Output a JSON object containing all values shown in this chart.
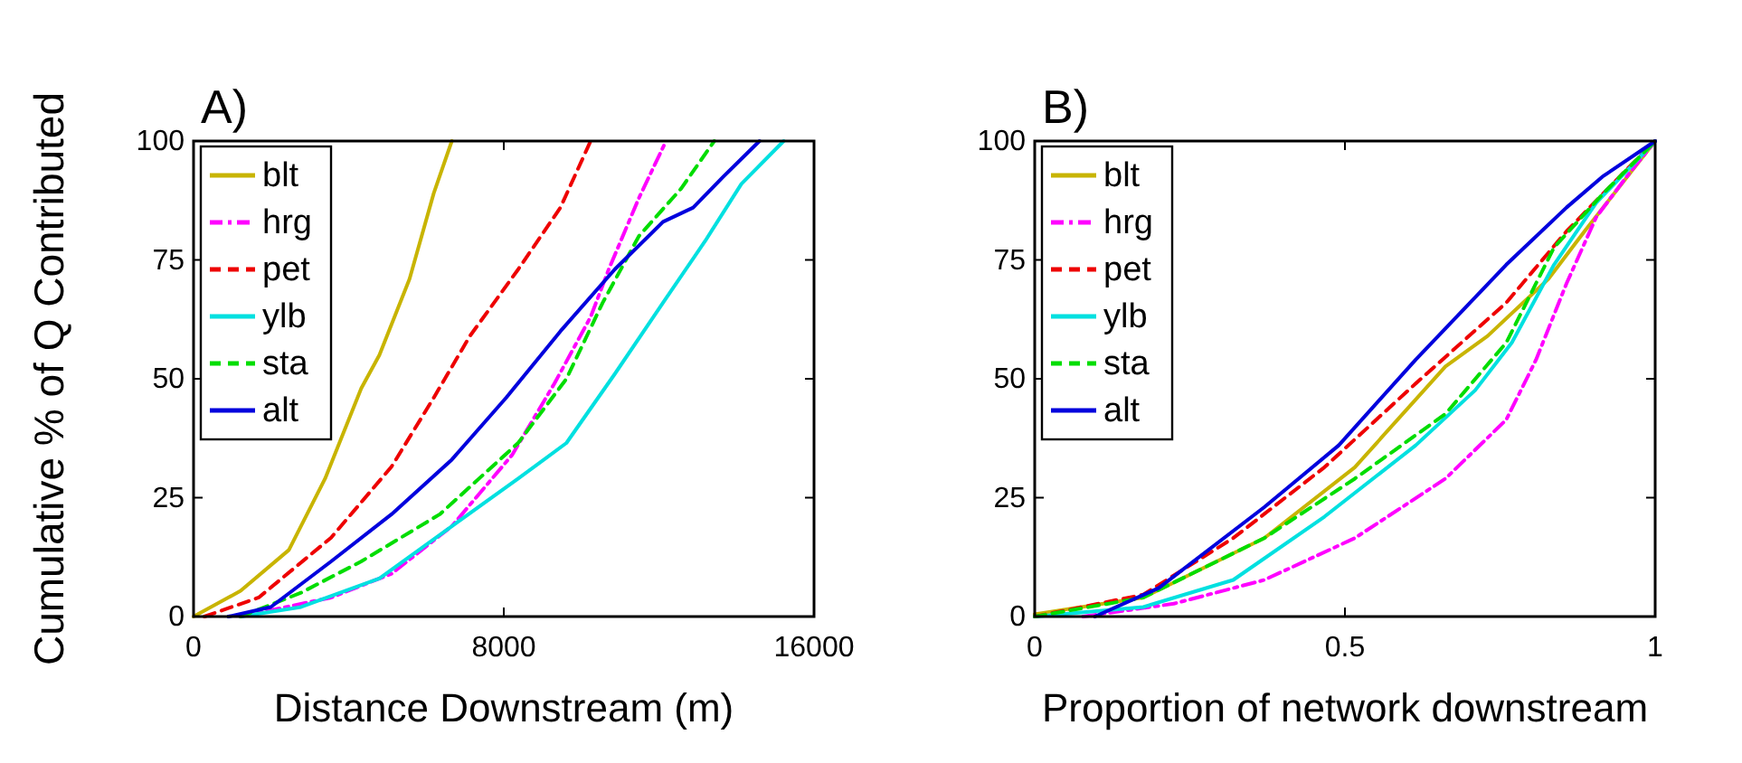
{
  "chart_data": [
    {
      "type": "line",
      "title": "A)",
      "xlabel": "Distance Downstream (m)",
      "ylabel": "Cumulative % of Q Contributed",
      "xlim": [
        0,
        16000
      ],
      "xticks": [
        0,
        8000,
        16000
      ],
      "ylim": [
        0,
        100
      ],
      "yticks": [
        0,
        25,
        50,
        75,
        100
      ],
      "grid": false,
      "legend": "top left",
      "series": [
        {
          "name": "blt",
          "color": "#c8b400",
          "line_style": "solid",
          "x": [
            0,
            1214,
            2458,
            3392,
            4325,
            4792,
            5570,
            6193,
            6660
          ],
          "values": [
            0,
            5.4,
            14,
            29,
            48,
            55,
            71,
            89,
            100
          ]
        },
        {
          "name": "hrg",
          "color": "#ff00ff",
          "line_style": "dashdot",
          "x": [
            1214,
            3548,
            5104,
            6660,
            8216,
            9305,
            10239,
            10706,
            11484,
            12184
          ],
          "values": [
            0,
            4,
            9,
            19,
            34,
            49,
            63,
            73,
            88,
            100
          ]
        },
        {
          "name": "pet",
          "color": "#ee0000",
          "line_style": "dashed",
          "x": [
            280,
            1680,
            3548,
            5104,
            6193,
            7127,
            8371,
            9460,
            10239
          ],
          "values": [
            0,
            4,
            16.6,
            31.5,
            46,
            59,
            73,
            86,
            100
          ]
        },
        {
          "name": "ylb",
          "color": "#00e0e0",
          "line_style": "solid",
          "x": [
            1214,
            2770,
            4792,
            6660,
            8371,
            9616,
            10861,
            12106,
            13195,
            14128,
            15218
          ],
          "values": [
            0,
            2,
            8,
            19,
            29,
            36.5,
            51,
            66,
            79,
            91,
            100
          ]
        },
        {
          "name": "sta",
          "color": "#00dd00",
          "line_style": "dashed",
          "x": [
            1214,
            2770,
            4325,
            6349,
            8371,
            9616,
            10550,
            11484,
            12573,
            13428
          ],
          "values": [
            0,
            5,
            11.6,
            21.5,
            36.5,
            50,
            66,
            80,
            90,
            100
          ]
        },
        {
          "name": "alt",
          "color": "#0000dd",
          "line_style": "solid",
          "x": [
            900,
            1992,
            3548,
            5104,
            6660,
            8060,
            9460,
            10861,
            12106,
            12884,
            13662,
            14595
          ],
          "values": [
            0,
            2,
            11.6,
            21.5,
            33,
            46,
            60,
            73,
            83,
            86,
            92.5,
            100
          ]
        }
      ]
    },
    {
      "type": "line",
      "title": "B)",
      "xlabel": "Proportion of network downstream",
      "xlim": [
        0,
        1
      ],
      "xticks": [
        0,
        0.5,
        1
      ],
      "ylim": [
        0,
        100
      ],
      "yticks": [
        0,
        25,
        50,
        75,
        100
      ],
      "grid": false,
      "legend": "top left",
      "series": [
        {
          "name": "blt",
          "color": "#c8b400",
          "line_style": "solid",
          "x": [
            0,
            0.175,
            0.37,
            0.516,
            0.662,
            0.73,
            0.828,
            0.886,
            1
          ],
          "values": [
            0.5,
            4,
            16.5,
            31.4,
            52.6,
            59,
            71,
            81,
            100
          ]
        },
        {
          "name": "hrg",
          "color": "#ff00ff",
          "line_style": "dashdot",
          "x": [
            0.078,
            0.224,
            0.37,
            0.516,
            0.662,
            0.76,
            0.808,
            0.857,
            0.905,
            0.954,
            1
          ],
          "values": [
            0,
            2.7,
            7.7,
            16.5,
            29,
            41.4,
            54,
            70,
            84,
            92.5,
            100
          ]
        },
        {
          "name": "pet",
          "color": "#ee0000",
          "line_style": "dashed",
          "x": [
            0,
            0.175,
            0.32,
            0.467,
            0.614,
            0.76,
            0.857,
            0.954,
            1
          ],
          "values": [
            0,
            4.6,
            16.5,
            31.4,
            49,
            66,
            81,
            94,
            100
          ]
        },
        {
          "name": "ylb",
          "color": "#00e0e0",
          "line_style": "solid",
          "x": [
            0,
            0.175,
            0.32,
            0.467,
            0.614,
            0.71,
            0.769,
            0.837,
            0.905,
            1
          ],
          "values": [
            0,
            2,
            7.7,
            21,
            36,
            47.6,
            57.6,
            74,
            87,
            100
          ]
        },
        {
          "name": "sta",
          "color": "#00dd00",
          "line_style": "dashed",
          "x": [
            0,
            0.175,
            0.37,
            0.516,
            0.662,
            0.76,
            0.837,
            0.915,
            1
          ],
          "values": [
            0,
            4,
            16.5,
            29,
            42.6,
            57.6,
            77.6,
            88.8,
            100
          ]
        },
        {
          "name": "alt",
          "color": "#0000dd",
          "line_style": "solid",
          "x": [
            0.097,
            0.2,
            0.37,
            0.49,
            0.614,
            0.76,
            0.857,
            0.915,
            1
          ],
          "values": [
            0,
            6,
            23,
            36,
            54,
            74,
            86,
            92.5,
            100
          ]
        }
      ]
    }
  ]
}
